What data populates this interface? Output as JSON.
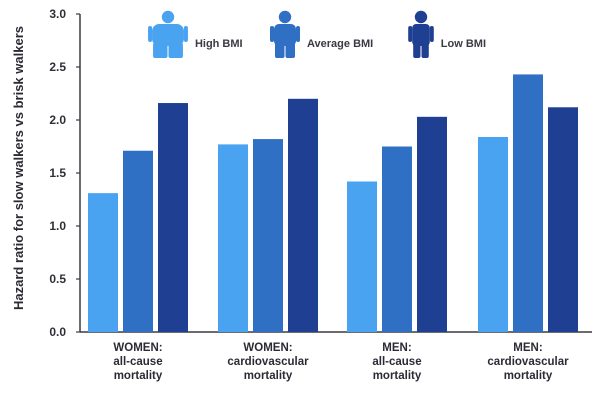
{
  "chart_data": {
    "type": "bar",
    "ylabel": "Hazard ratio for slow walkers vs brisk walkers",
    "xlabel": "",
    "ylim": [
      0,
      3.0
    ],
    "yticks": [
      "0.0",
      "0.5",
      "1.0",
      "1.5",
      "2.0",
      "2.5",
      "3.0"
    ],
    "grid": false,
    "legend_position": "top-center",
    "categories": [
      [
        "WOMEN:",
        "all-cause",
        "mortality"
      ],
      [
        "WOMEN:",
        "cardiovascular",
        "mortality"
      ],
      [
        "MEN:",
        "all-cause",
        "mortality"
      ],
      [
        "MEN:",
        "cardiovascular",
        "mortality"
      ]
    ],
    "series": [
      {
        "name": "High BMI",
        "values": [
          1.31,
          1.77,
          1.42,
          1.84
        ],
        "color": "#4aa3f0",
        "icon": "high-bmi-person-icon"
      },
      {
        "name": "Average BMI",
        "values": [
          1.71,
          1.82,
          1.75,
          2.43
        ],
        "color": "#2f6fc4",
        "icon": "average-bmi-person-icon"
      },
      {
        "name": "Low BMI",
        "values": [
          2.16,
          2.2,
          2.03,
          2.12
        ],
        "color": "#1f3f92",
        "icon": "low-bmi-person-icon"
      }
    ]
  }
}
